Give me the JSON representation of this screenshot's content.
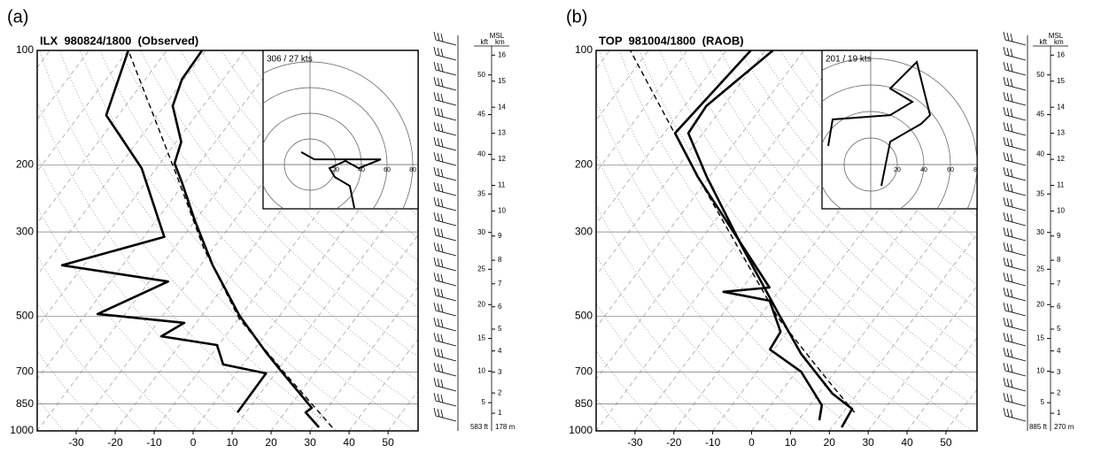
{
  "chart_data": [
    {
      "type": "skewt",
      "panel_label": "(a)",
      "title": "ILX  980824/1800  (Observed)",
      "ylim": [
        1000,
        100
      ],
      "log_y": true,
      "yticks": [
        100,
        200,
        300,
        500,
        700,
        850,
        1000
      ],
      "xlim": [
        -40,
        57.7
      ],
      "xticks": [
        -30,
        -20,
        -10,
        0,
        10,
        20,
        30,
        40,
        50
      ],
      "skew": 0.75,
      "grid": true,
      "series": [
        {
          "color": "#000000",
          "linestyle": "solid",
          "width": 2.6,
          "pressure": [
            979,
            894,
            870,
            699,
            621,
            498,
            367,
            281,
            221,
            198,
            174,
            140,
            119,
            100
          ],
          "values": [
            31.6,
            25.3,
            26.0,
            11.3,
            3.5,
            -10.3,
            -26.9,
            -39.9,
            -51.0,
            -56.3,
            -58.7,
            -67.8,
            -70.6,
            -71.0
          ]
        },
        {
          "color": "#000000",
          "linestyle": "solid",
          "width": 2.6,
          "pressure": [
            894,
            706,
            669,
            595,
            564,
            520,
            493,
            405,
            367,
            309,
            204,
            148,
            100
          ],
          "values": [
            7.8,
            7.6,
            -5.1,
            -10.4,
            -26.4,
            -23.1,
            -47.0,
            -35.2,
            -65.5,
            -44.8,
            -63.8,
            -83.1,
            -89.9
          ]
        },
        {
          "color": "#000000",
          "linestyle": "dashed",
          "width": 1.4,
          "pressure": [
            979,
            699,
            507,
            330,
            215,
            100
          ],
          "values": [
            35.0,
            11.8,
            -9.8,
            -32.6,
            -53.0,
            -89.9
          ]
        }
      ],
      "hodograph": {
        "label": "306 / 27 kts",
        "rings": [
          20,
          40,
          60,
          80
        ],
        "u": [
          34.5,
          31.0,
          19.3,
          15.2,
          27.6,
          37.9,
          55.2,
          27.6,
          3.4,
          -6.9
        ],
        "v": [
          -33.8,
          -16.6,
          -9.7,
          -2.8,
          2.8,
          -2.8,
          4.1,
          4.1,
          4.1,
          9.7
        ]
      },
      "height_axis": {
        "title": "MSL",
        "left_unit": "kft",
        "right_unit": "km",
        "km_ticks": [
          1,
          2,
          3,
          4,
          5,
          6,
          7,
          8,
          9,
          10,
          11,
          12,
          13,
          14,
          15,
          16
        ],
        "kft_ticks": [
          5,
          10,
          15,
          20,
          25,
          30,
          35,
          40,
          45,
          50
        ],
        "surface_left": "583 ft",
        "surface_right": "178 m"
      }
    },
    {
      "type": "skewt",
      "panel_label": "(b)",
      "title": "TOP  981004/1800  (RAOB)",
      "ylim": [
        1000,
        100
      ],
      "log_y": true,
      "yticks": [
        100,
        200,
        300,
        500,
        700,
        850,
        1000
      ],
      "xlim": [
        -40,
        58
      ],
      "xticks": [
        -30,
        -20,
        -10,
        0,
        10,
        20,
        30,
        40,
        50
      ],
      "skew": 0.75,
      "grid": true,
      "series": [
        {
          "color": "#000000",
          "linestyle": "solid",
          "width": 2.6,
          "pressure": [
            979,
            875,
            798,
            628,
            493,
            330,
            215,
            165,
            140,
            100
          ],
          "values": [
            22.5,
            21.6,
            13.6,
            -2.1,
            -15.6,
            -37.7,
            -60.6,
            -73.8,
            -74.4,
            -68.0
          ]
        },
        {
          "color": "#000000",
          "linestyle": "solid",
          "width": 2.6,
          "pressure": [
            938,
            856,
            699,
            611,
            549,
            455,
            431,
            420,
            215,
            165,
            100
          ],
          "values": [
            15.4,
            13.1,
            1.3,
            -11.0,
            -11.7,
            -20.5,
            -34.1,
            -23.1,
            -62.9,
            -77.2,
            -73.7
          ]
        },
        {
          "color": "#000000",
          "linestyle": "dashed",
          "width": 1.4,
          "pressure": [
            894,
            737,
            507,
            215,
            100
          ],
          "values": [
            22.9,
            9.9,
            -14.7,
            -62.9,
            -104.7
          ]
        }
      ],
      "hodograph": {
        "label": "201 / 19 kts",
        "rings": [
          20,
          40,
          60,
          80
        ],
        "u": [
          -32,
          -28.7,
          14.7,
          31.3,
          14.7,
          34.7,
          44.7,
          38,
          14.7,
          11.3,
          8
        ],
        "v": [
          14,
          34,
          37.3,
          47.3,
          57.3,
          77.3,
          37.3,
          30.7,
          17.3,
          0.7,
          -16
        ]
      },
      "height_axis": {
        "title": "MSL",
        "left_unit": "kft",
        "right_unit": "km",
        "km_ticks": [
          1,
          2,
          3,
          4,
          5,
          6,
          7,
          8,
          9,
          10,
          11,
          12,
          13,
          14,
          15,
          16
        ],
        "kft_ticks": [
          5,
          10,
          15,
          20,
          25,
          30,
          35,
          40,
          45,
          50
        ],
        "surface_left": "885 ft",
        "surface_right": "270 m"
      }
    }
  ]
}
